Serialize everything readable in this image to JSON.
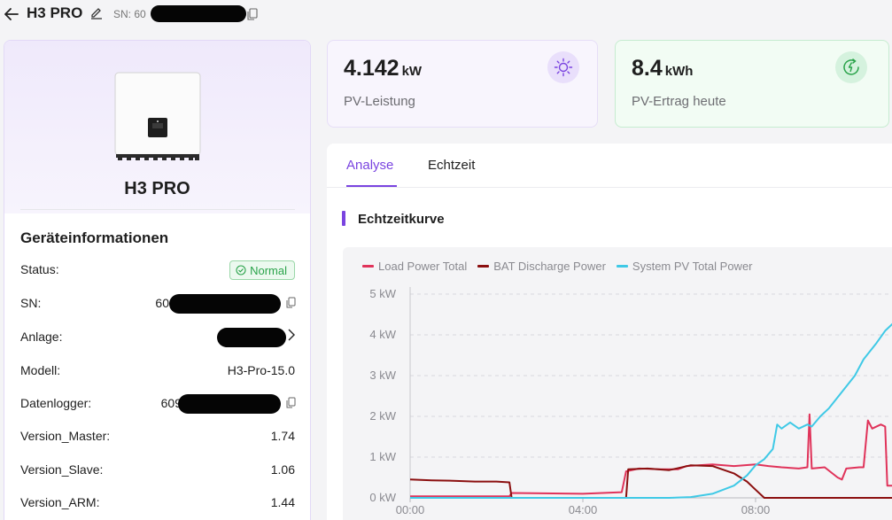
{
  "header": {
    "title": "H3 PRO",
    "sn_prefix": "SN: 60"
  },
  "device": {
    "name": "H3 PRO",
    "section_title": "Geräteinformationen",
    "rows": [
      {
        "label": "Status",
        "value": "Normal"
      },
      {
        "label": "SN",
        "value": "60"
      },
      {
        "label": "Anlage",
        "value": ""
      },
      {
        "label": "Modell",
        "value": "H3-Pro-15.0"
      },
      {
        "label": "Datenlogger",
        "value": "609"
      },
      {
        "label": "Version_Master",
        "value": "1.74"
      },
      {
        "label": "Version_Slave",
        "value": "1.06"
      },
      {
        "label": "Version_ARM",
        "value": "1.44"
      }
    ]
  },
  "kpis": {
    "pv": {
      "value": "4.142",
      "unit": "kW",
      "label": "PV-Leistung",
      "icon": "sun-icon"
    },
    "yield": {
      "value": "8.4",
      "unit": "kWh",
      "label": "PV-Ertrag heute",
      "icon": "24h-icon"
    }
  },
  "tabs": [
    {
      "label": "Analyse",
      "active": true
    },
    {
      "label": "Echtzeit",
      "active": false
    }
  ],
  "curve_title": "Echtzeitkurve",
  "colors": {
    "accent": "#7a44e0",
    "load": "#e0335a",
    "bat": "#8b0f0f",
    "pv": "#3fc9e6"
  },
  "chart_data": {
    "type": "line",
    "ylim": [
      0,
      5
    ],
    "yticks": [
      "0 kW",
      "1 kW",
      "2 kW",
      "3 kW",
      "4 kW",
      "5 kW"
    ],
    "xticks": [
      "00:00",
      "04:00",
      "08:00"
    ],
    "xlim_hours": [
      0,
      11.2
    ],
    "grid": true,
    "legend_position": "top-left",
    "series": [
      {
        "name": "Load Power Total",
        "color": "#e0335a",
        "points": [
          [
            0.0,
            0.04
          ],
          [
            2.0,
            0.04
          ],
          [
            2.3,
            0.04
          ],
          [
            2.35,
            0.12
          ],
          [
            4.0,
            0.1
          ],
          [
            4.9,
            0.14
          ],
          [
            5.0,
            0.65
          ],
          [
            5.3,
            0.72
          ],
          [
            5.8,
            0.7
          ],
          [
            6.2,
            0.7
          ],
          [
            6.4,
            0.78
          ],
          [
            7.0,
            0.82
          ],
          [
            7.5,
            0.78
          ],
          [
            8.0,
            0.82
          ],
          [
            8.3,
            0.78
          ],
          [
            8.6,
            0.75
          ],
          [
            9.0,
            0.72
          ],
          [
            9.2,
            0.75
          ],
          [
            9.25,
            2.05
          ],
          [
            9.3,
            0.72
          ],
          [
            9.6,
            0.75
          ],
          [
            9.9,
            0.5
          ],
          [
            10.0,
            0.45
          ],
          [
            10.1,
            0.72
          ],
          [
            10.4,
            0.75
          ],
          [
            10.5,
            0.75
          ],
          [
            10.6,
            1.9
          ],
          [
            10.7,
            1.7
          ],
          [
            10.9,
            1.8
          ],
          [
            11.0,
            1.75
          ],
          [
            11.05,
            0.3
          ],
          [
            11.2,
            0.3
          ],
          [
            11.25,
            1.2
          ],
          [
            11.35,
            1.15
          ]
        ]
      },
      {
        "name": "BAT Discharge Power",
        "color": "#8b0f0f",
        "points": [
          [
            0.0,
            0.45
          ],
          [
            0.5,
            0.43
          ],
          [
            1.0,
            0.42
          ],
          [
            1.5,
            0.4
          ],
          [
            2.0,
            0.4
          ],
          [
            2.3,
            0.38
          ],
          [
            2.35,
            0.0
          ],
          [
            5.0,
            0.0
          ],
          [
            5.05,
            0.7
          ],
          [
            5.5,
            0.72
          ],
          [
            6.0,
            0.68
          ],
          [
            6.5,
            0.8
          ],
          [
            7.0,
            0.78
          ],
          [
            7.5,
            0.6
          ],
          [
            7.8,
            0.4
          ],
          [
            8.0,
            0.2
          ],
          [
            8.2,
            0.0
          ],
          [
            11.35,
            0.0
          ]
        ]
      },
      {
        "name": "System PV Total Power",
        "color": "#3fc9e6",
        "points": [
          [
            0.0,
            0.0
          ],
          [
            6.0,
            0.0
          ],
          [
            6.5,
            0.02
          ],
          [
            7.0,
            0.1
          ],
          [
            7.5,
            0.3
          ],
          [
            7.8,
            0.55
          ],
          [
            8.0,
            0.8
          ],
          [
            8.2,
            0.95
          ],
          [
            8.4,
            1.2
          ],
          [
            8.5,
            1.8
          ],
          [
            8.6,
            1.7
          ],
          [
            8.8,
            1.85
          ],
          [
            9.0,
            1.7
          ],
          [
            9.2,
            1.8
          ],
          [
            9.3,
            1.75
          ],
          [
            9.5,
            2.0
          ],
          [
            9.7,
            2.2
          ],
          [
            10.0,
            2.6
          ],
          [
            10.3,
            3.0
          ],
          [
            10.5,
            3.4
          ],
          [
            10.8,
            3.8
          ],
          [
            11.0,
            4.1
          ],
          [
            11.2,
            4.3
          ],
          [
            11.3,
            4.2
          ]
        ]
      }
    ]
  }
}
